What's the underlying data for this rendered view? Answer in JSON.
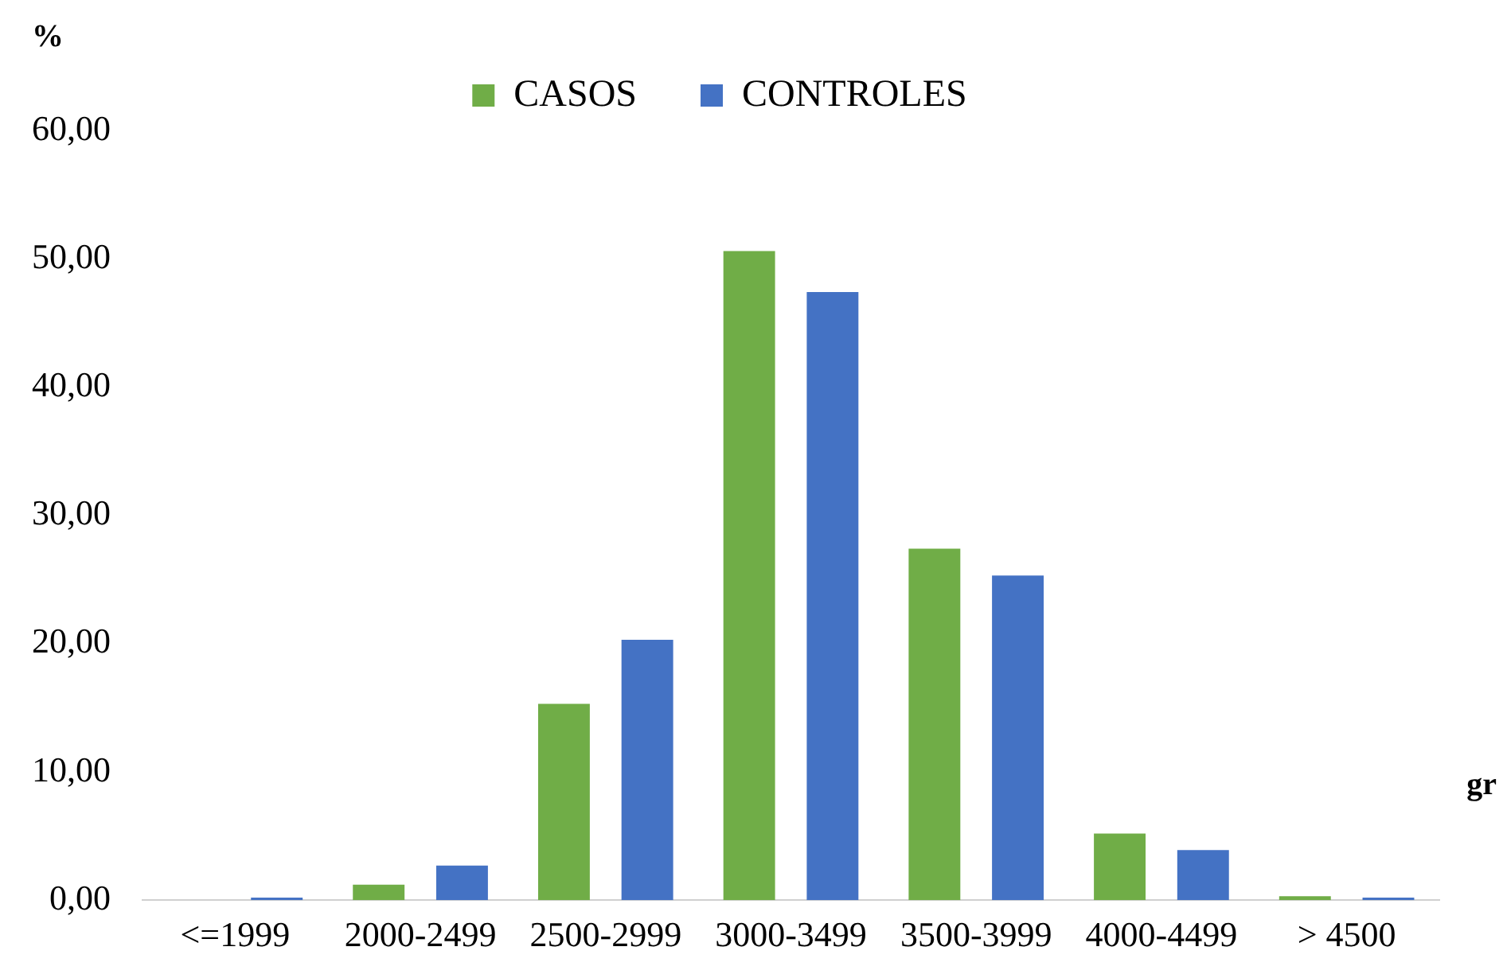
{
  "chart_data": {
    "type": "bar",
    "xlabel": "gr",
    "ylabel": "%",
    "categories": [
      "<=1999",
      "2000-2499",
      "2500-2999",
      "3000-3499",
      "3500-3999",
      "4000-4499",
      "> 4500"
    ],
    "series": [
      {
        "name": "CASOS",
        "color": "#70ad47",
        "values": [
          0,
          1.2,
          15.3,
          50.6,
          27.4,
          5.2,
          0.3
        ]
      },
      {
        "name": "CONTROLES",
        "color": "#4472c4",
        "values": [
          0.2,
          2.7,
          20.3,
          47.4,
          25.3,
          3.9,
          0.2
        ]
      }
    ],
    "ylim": [
      0,
      60
    ],
    "yticks": [
      {
        "value": 0,
        "label": "0,00"
      },
      {
        "value": 10,
        "label": "10,00"
      },
      {
        "value": 20,
        "label": "20,00"
      },
      {
        "value": 30,
        "label": "30,00"
      },
      {
        "value": 40,
        "label": "40,00"
      },
      {
        "value": 50,
        "label": "50,00"
      },
      {
        "value": 60,
        "label": "60,00"
      }
    ],
    "grid": false,
    "legend": "top"
  }
}
